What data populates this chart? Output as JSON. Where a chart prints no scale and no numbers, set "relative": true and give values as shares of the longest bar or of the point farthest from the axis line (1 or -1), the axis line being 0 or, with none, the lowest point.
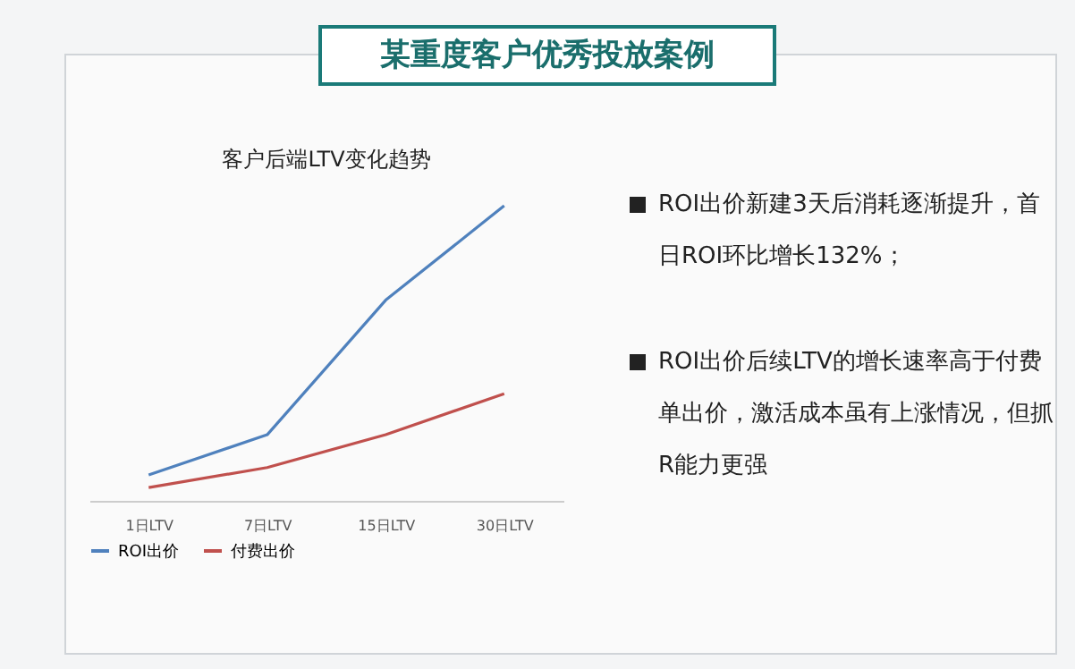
{
  "chart_data": {
    "type": "line",
    "title": "某重度客户优秀投放案例",
    "subtitle": "客户后端LTV变化趋势",
    "categories": [
      "1日LTV",
      "7日LTV",
      "15日LTV",
      "30日LTV"
    ],
    "relative": true,
    "legend": "bottom",
    "series": [
      {
        "name": "ROI出价",
        "color": "#4f81bd",
        "values": [
          0.088,
          0.224,
          0.68,
          1
        ]
      },
      {
        "name": "付费出价",
        "color": "#c0504d",
        "values": [
          0.045,
          0.113,
          0.224,
          0.363
        ]
      }
    ],
    "annotations": [
      "ROI出价新建3天后消耗逐渐提升，首日ROI环比增长132%；",
      "ROI出价后续LTV的增长速率高于付费单出价，激活成本虽有上涨情况，但抓R能力更强"
    ]
  }
}
